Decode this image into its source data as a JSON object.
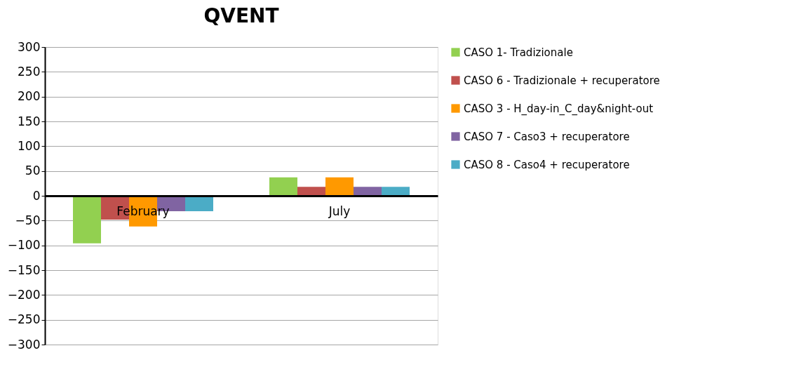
{
  "chart_data": {
    "type": "bar",
    "title": "QVENT",
    "categories": [
      "February",
      "July"
    ],
    "series": [
      {
        "name": "CASO 1- Tradizionale",
        "color": "#92d050",
        "values": [
          -96,
          37
        ]
      },
      {
        "name": "CASO 6 - Tradizionale + recuperatore",
        "color": "#c0504d",
        "values": [
          -48,
          18
        ]
      },
      {
        "name": "CASO 3 - H_day-in_C_day&night-out",
        "color": "#ff9900",
        "values": [
          -62,
          37
        ]
      },
      {
        "name": "CASO 7 - Caso3 + recuperatore",
        "color": "#8064a2",
        "values": [
          -31,
          18
        ]
      },
      {
        "name": "CASO 8 - Caso4 + recuperatore",
        "color": "#4bacc6",
        "values": [
          -31,
          18
        ]
      }
    ],
    "ylim": [
      -300,
      300
    ],
    "yticks": [
      -300,
      -250,
      -200,
      -150,
      -100,
      -50,
      0,
      50,
      100,
      150,
      200,
      250,
      300
    ],
    "grid": "y",
    "legend": "right"
  }
}
